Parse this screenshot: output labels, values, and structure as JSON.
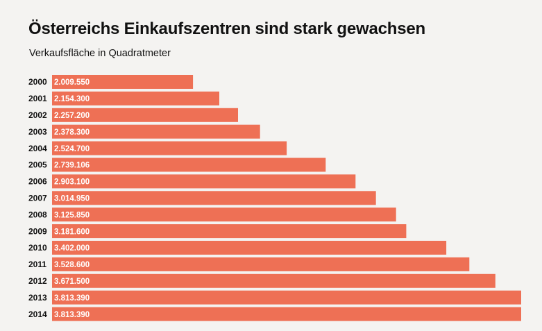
{
  "chart_data": {
    "type": "bar",
    "orientation": "horizontal",
    "title": "Österreichs Einkaufszentren sind stark gewachsen",
    "subtitle": "Verkaufsfläche in Quadratmeter",
    "xlabel": "",
    "ylabel": "",
    "categories": [
      "2000",
      "2001",
      "2002",
      "2003",
      "2004",
      "2005",
      "2006",
      "2007",
      "2008",
      "2009",
      "2010",
      "2011",
      "2012",
      "2013",
      "2014"
    ],
    "values": [
      2009550,
      2154300,
      2257200,
      2378300,
      2524700,
      2739106,
      2903100,
      3014950,
      3125850,
      3181600,
      3402000,
      3528600,
      3671500,
      3813390,
      3813390
    ],
    "value_labels": [
      "2.009.550",
      "2.154.300",
      "2.257.200",
      "2.378.300",
      "2.524.700",
      "2.739.106",
      "2.903.100",
      "3.014.950",
      "3.125.850",
      "3.181.600",
      "3.402.000",
      "3.528.600",
      "3.671.500",
      "3.813.390",
      "3.813.390"
    ],
    "xlim": [
      0,
      3813390
    ],
    "grid": false,
    "legend": "none",
    "bar_color": "#ee7055"
  }
}
